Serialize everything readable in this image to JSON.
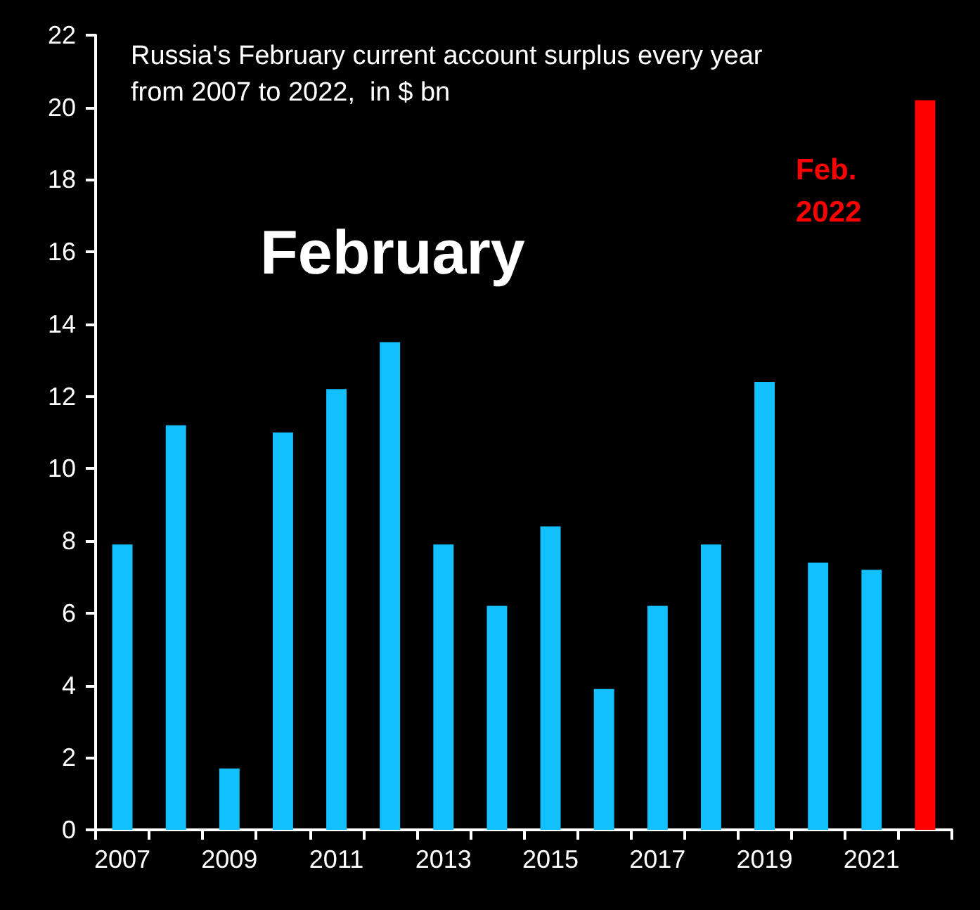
{
  "chart_data": {
    "type": "bar",
    "title": "Russia's February current account surplus every year from 2007 to 2022,  in $ bn",
    "categories": [
      "2007",
      null,
      "2009",
      null,
      "2011",
      null,
      "2013",
      null,
      "2015",
      null,
      "2017",
      null,
      "2019",
      null,
      "2021",
      null
    ],
    "values": [
      7.9,
      11.2,
      1.7,
      11.0,
      12.2,
      13.5,
      7.9,
      6.2,
      8.4,
      3.9,
      6.2,
      7.9,
      12.4,
      7.4,
      7.2,
      20.2
    ],
    "colors": [
      "#12bfff",
      "#12bfff",
      "#12bfff",
      "#12bfff",
      "#12bfff",
      "#12bfff",
      "#12bfff",
      "#12bfff",
      "#12bfff",
      "#12bfff",
      "#12bfff",
      "#12bfff",
      "#12bfff",
      "#12bfff",
      "#12bfff",
      "#ff0000"
    ],
    "ylim": [
      0,
      22
    ],
    "yticks": [
      0,
      2,
      4,
      6,
      8,
      10,
      12,
      14,
      16,
      18,
      20,
      22
    ],
    "grid": false,
    "annotations": [
      "February",
      "Feb. 2022"
    ]
  }
}
